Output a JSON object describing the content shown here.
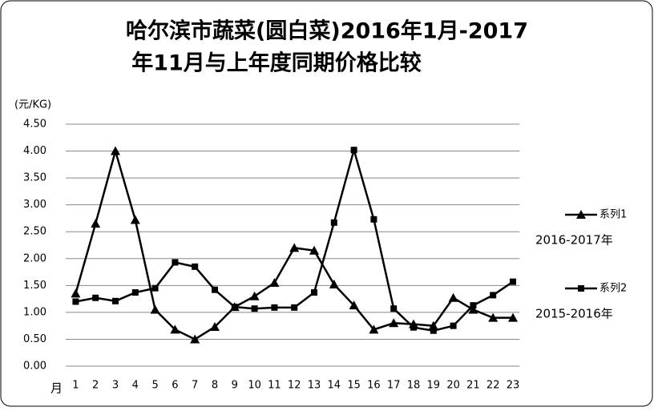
{
  "chart_data": {
    "type": "line",
    "title": [
      "哈尔滨市蔬菜(圆白菜)2016年1月-2017",
      "年11月与上年度同期价格比较"
    ],
    "y_label": "(元/KG)",
    "x_label": "月",
    "categories": [
      "1",
      "2",
      "3",
      "4",
      "5",
      "6",
      "7",
      "8",
      "9",
      "10",
      "11",
      "12",
      "13",
      "14",
      "15",
      "16",
      "17",
      "18",
      "19",
      "20",
      "21",
      "22",
      "23"
    ],
    "series": [
      {
        "name": "系列1",
        "color": "#000000",
        "marker": "triangle",
        "annotation": "2016-2017年",
        "values": [
          1.35,
          2.65,
          4.0,
          2.72,
          1.05,
          0.68,
          0.5,
          0.73,
          1.1,
          1.3,
          1.55,
          2.2,
          2.15,
          1.52,
          1.13,
          0.68,
          0.8,
          0.78,
          0.75,
          1.27,
          1.05,
          0.9,
          0.9
        ]
      },
      {
        "name": "系列2",
        "color": "#000000",
        "marker": "square",
        "annotation": "2015-2016年",
        "values": [
          1.2,
          1.27,
          1.21,
          1.37,
          1.45,
          1.93,
          1.85,
          1.42,
          1.1,
          1.07,
          1.09,
          1.09,
          1.37,
          2.67,
          4.02,
          2.73,
          1.07,
          0.72,
          0.66,
          0.75,
          1.13,
          1.32,
          1.57
        ]
      }
    ],
    "ylim": [
      0,
      4.5
    ],
    "yticks": [
      {
        "value": 0,
        "label": "0.00"
      },
      {
        "value": 0.5,
        "label": "0.50"
      },
      {
        "value": 1,
        "label": "1.00"
      },
      {
        "value": 1.5,
        "label": "1.50"
      },
      {
        "value": 2,
        "label": "2.00"
      },
      {
        "value": 2.5,
        "label": "2.50"
      },
      {
        "value": 3,
        "label": "3.00"
      },
      {
        "value": 3.5,
        "label": "3.50"
      },
      {
        "value": 4,
        "label": "4.00"
      },
      {
        "value": 4.5,
        "label": "4.50"
      }
    ],
    "grid": true
  }
}
